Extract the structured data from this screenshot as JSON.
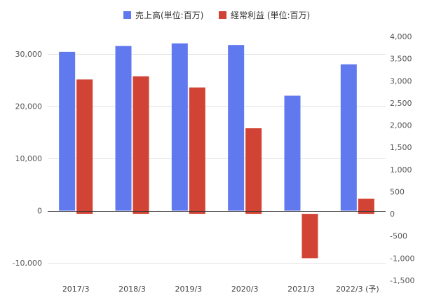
{
  "chart_data": {
    "type": "bar",
    "categories": [
      "2017/3",
      "2018/3",
      "2019/3",
      "2020/3",
      "2021/3",
      "2022/3 (予)"
    ],
    "series": [
      {
        "name": "売上高(単位:百万)",
        "axis": "left",
        "color": "#6079EE",
        "values": [
          30400,
          31500,
          32000,
          31700,
          22000,
          28000
        ]
      },
      {
        "name": "経常利益 (単位:百万)",
        "axis": "right",
        "color": "#D14435",
        "values": [
          3030,
          3100,
          2850,
          1930,
          -1000,
          340
        ]
      }
    ],
    "y_left": {
      "ylim": [
        -13333.33,
        33333.33
      ],
      "ticks": [
        -10000,
        0,
        10000,
        20000,
        30000
      ],
      "tick_labels": [
        "-10,000",
        "0",
        "10,000",
        "20,000",
        "30,000"
      ]
    },
    "y_right": {
      "ylim": [
        -1500,
        4000
      ],
      "ticks": [
        -1500,
        -1000,
        -500,
        0,
        500,
        1000,
        1500,
        2000,
        2500,
        3000,
        3500,
        4000
      ],
      "tick_labels": [
        "-1,500",
        "-1,000",
        "-500",
        "0",
        "500",
        "1,000",
        "1,500",
        "2,000",
        "2,500",
        "3,000",
        "3,500",
        "4,000"
      ]
    },
    "legend_position": "top-center",
    "grid": true
  }
}
